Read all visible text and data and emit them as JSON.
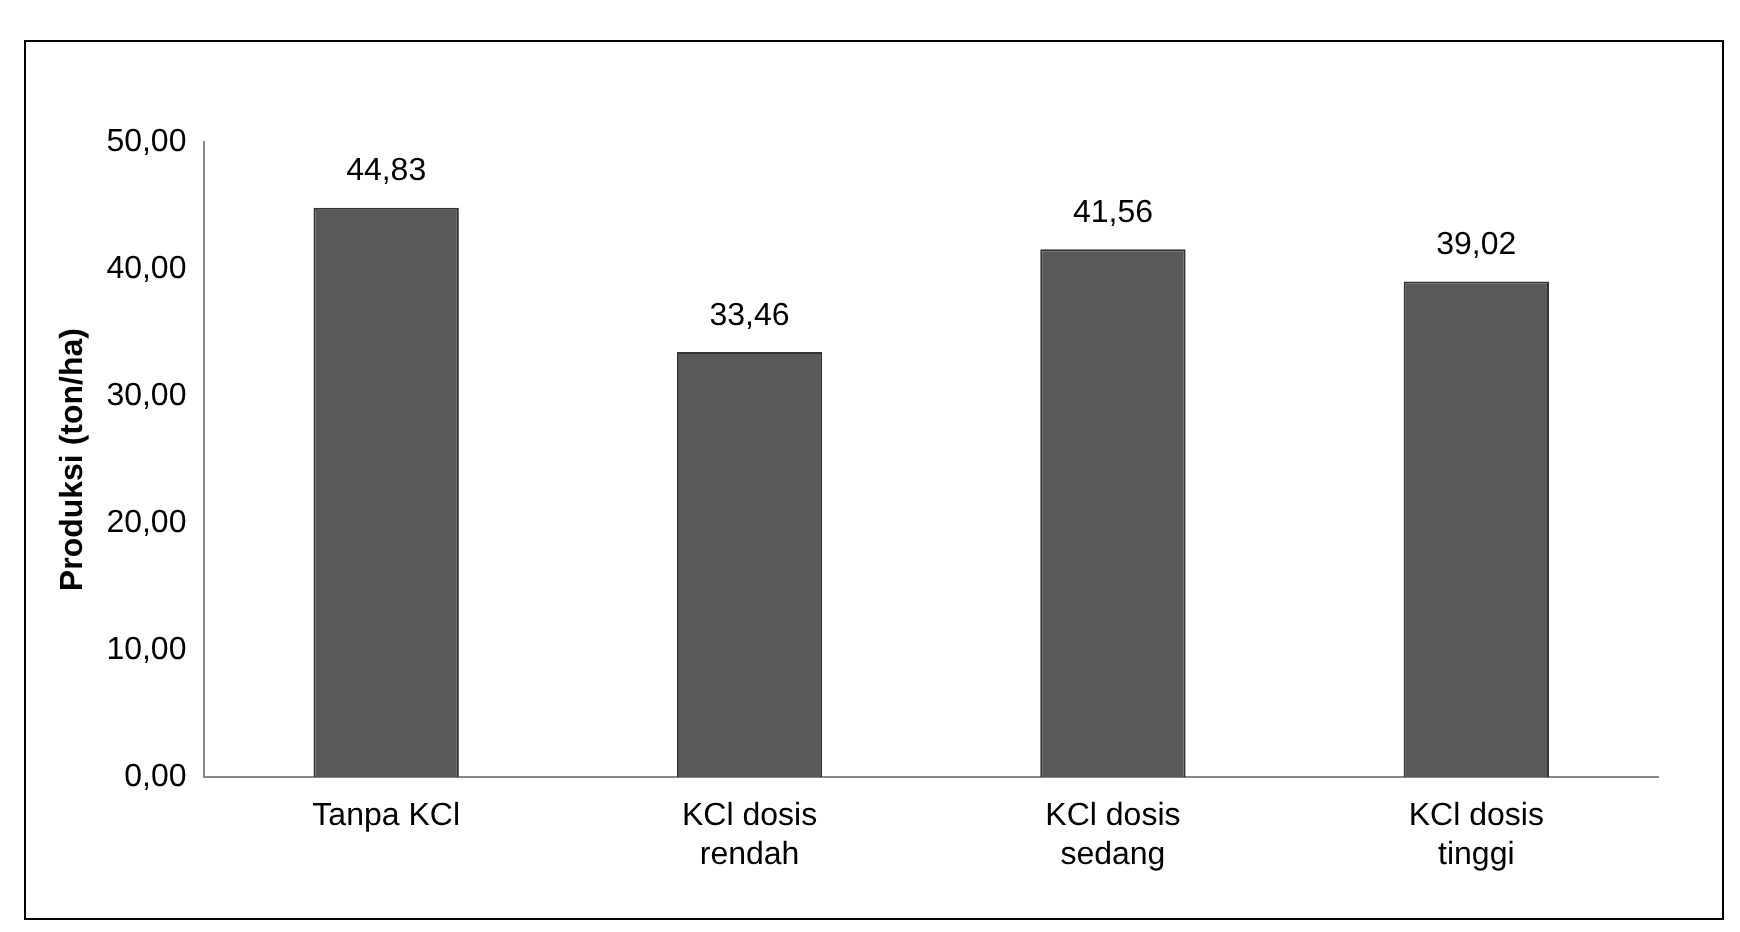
{
  "chart_data": {
    "type": "bar",
    "ylabel": "Produksi (ton/ha)",
    "categories": [
      "Tanpa KCl",
      "KCl dosis rendah",
      "KCl dosis sedang",
      "KCl dosis tinggi"
    ],
    "values": [
      44.83,
      33.46,
      41.56,
      39.02
    ],
    "color": "#595959",
    "value_labels": [
      "44,83",
      "33,46",
      "41,56",
      "39,02"
    ],
    "ylim": [
      0,
      50
    ],
    "yticks": [
      {
        "value": 0,
        "label": "0,00"
      },
      {
        "value": 10,
        "label": "10,00"
      },
      {
        "value": 20,
        "label": "20,00"
      },
      {
        "value": 30,
        "label": "30,00"
      },
      {
        "value": 40,
        "label": "40,00"
      },
      {
        "value": 50,
        "label": "50,00"
      }
    ],
    "grid": false,
    "legend": false
  }
}
